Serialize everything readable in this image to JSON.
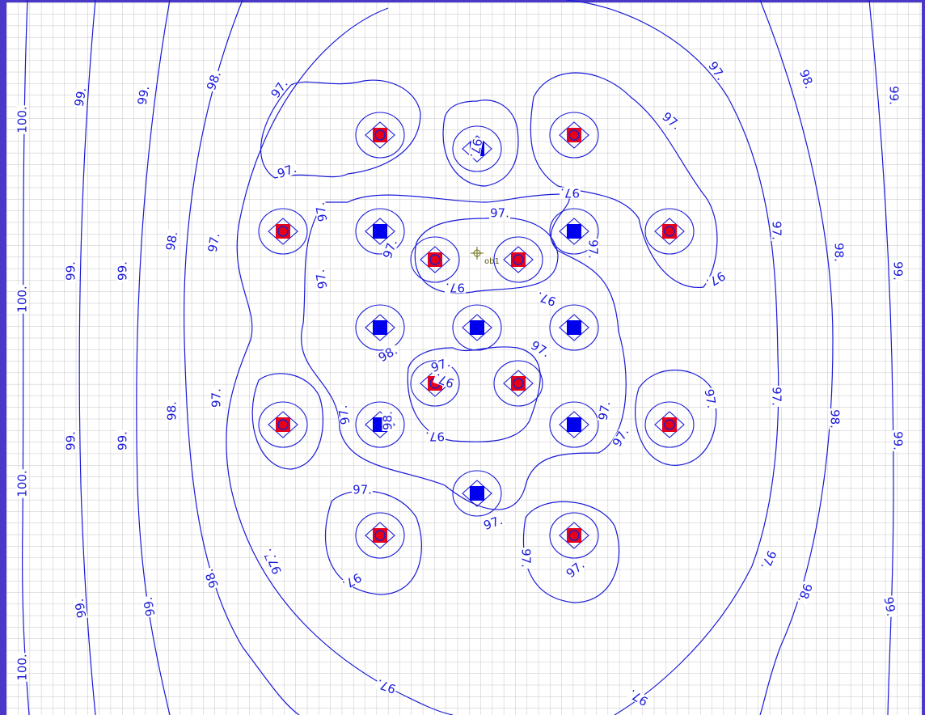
{
  "contours": [
    {
      "label": "100."
    },
    {
      "label": "99."
    },
    {
      "label": "98."
    },
    {
      "label": "97."
    }
  ],
  "observation_well": "ob1"
}
